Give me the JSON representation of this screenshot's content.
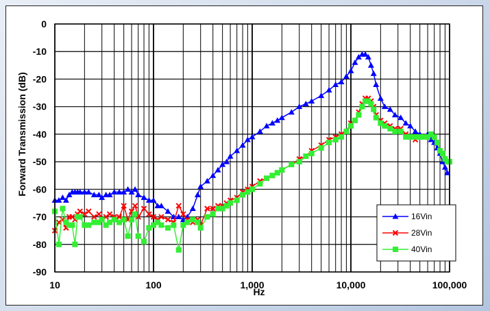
{
  "chart_data": {
    "type": "line",
    "xlabel": "Hz",
    "ylabel": "Forward Transmission (dB)",
    "x_scale": "log",
    "xlim": [
      10,
      100000
    ],
    "ylim": [
      -90,
      0
    ],
    "x_ticks": [
      10,
      100,
      1000,
      10000,
      100000
    ],
    "x_tick_labels": [
      "10",
      "100",
      "1,000",
      "10,000",
      "100,000"
    ],
    "y_ticks": [
      0,
      -10,
      -20,
      -30,
      -40,
      -50,
      -60,
      -70,
      -80,
      -90
    ],
    "y_tick_labels": [
      "0",
      "-10",
      "-20",
      "-30",
      "-40",
      "-50",
      "-60",
      "-70",
      "-80",
      "-90"
    ],
    "grid": true,
    "legend_position": "bottom-right",
    "series": [
      {
        "name": "16Vin",
        "color": "#0000ff",
        "marker": "triangle",
        "points": [
          [
            10,
            -64
          ],
          [
            11,
            -64
          ],
          [
            12,
            -63
          ],
          [
            13,
            -64
          ],
          [
            14,
            -62
          ],
          [
            15,
            -61
          ],
          [
            16,
            -61
          ],
          [
            17,
            -61
          ],
          [
            18,
            -61
          ],
          [
            20,
            -61
          ],
          [
            22,
            -61
          ],
          [
            25,
            -62
          ],
          [
            28,
            -62
          ],
          [
            30,
            -63
          ],
          [
            33,
            -62
          ],
          [
            36,
            -62
          ],
          [
            40,
            -61
          ],
          [
            45,
            -61
          ],
          [
            50,
            -61
          ],
          [
            55,
            -60
          ],
          [
            60,
            -61
          ],
          [
            65,
            -60
          ],
          [
            70,
            -62
          ],
          [
            80,
            -63
          ],
          [
            90,
            -64
          ],
          [
            100,
            -64
          ],
          [
            110,
            -66
          ],
          [
            120,
            -66
          ],
          [
            140,
            -68
          ],
          [
            160,
            -70
          ],
          [
            180,
            -70
          ],
          [
            200,
            -71
          ],
          [
            220,
            -70
          ],
          [
            250,
            -67
          ],
          [
            280,
            -62
          ],
          [
            300,
            -59
          ],
          [
            350,
            -57
          ],
          [
            400,
            -55
          ],
          [
            450,
            -53
          ],
          [
            500,
            -51
          ],
          [
            550,
            -50
          ],
          [
            600,
            -48
          ],
          [
            700,
            -46
          ],
          [
            800,
            -44
          ],
          [
            900,
            -42
          ],
          [
            1000,
            -41
          ],
          [
            1200,
            -39
          ],
          [
            1400,
            -37
          ],
          [
            1600,
            -36
          ],
          [
            1800,
            -35
          ],
          [
            2000,
            -34
          ],
          [
            2500,
            -32
          ],
          [
            3000,
            -30
          ],
          [
            3500,
            -29
          ],
          [
            4000,
            -28
          ],
          [
            5000,
            -26
          ],
          [
            6000,
            -24
          ],
          [
            7000,
            -22
          ],
          [
            8000,
            -21
          ],
          [
            9000,
            -19
          ],
          [
            10000,
            -17
          ],
          [
            11000,
            -14
          ],
          [
            12000,
            -12
          ],
          [
            13000,
            -11
          ],
          [
            14000,
            -11
          ],
          [
            15000,
            -12
          ],
          [
            16000,
            -15
          ],
          [
            17000,
            -18
          ],
          [
            18000,
            -22
          ],
          [
            20000,
            -27
          ],
          [
            22000,
            -30
          ],
          [
            25000,
            -31
          ],
          [
            28000,
            -33
          ],
          [
            32000,
            -34
          ],
          [
            36000,
            -36
          ],
          [
            40000,
            -37
          ],
          [
            45000,
            -39
          ],
          [
            50000,
            -40
          ],
          [
            55000,
            -41
          ],
          [
            60000,
            -40
          ],
          [
            65000,
            -42
          ],
          [
            70000,
            -43
          ],
          [
            75000,
            -45
          ],
          [
            80000,
            -47
          ],
          [
            85000,
            -50
          ],
          [
            90000,
            -52
          ],
          [
            95000,
            -54
          ]
        ]
      },
      {
        "name": "28Vin",
        "color": "#ff0000",
        "marker": "x",
        "points": [
          [
            10,
            -75
          ],
          [
            11,
            -72
          ],
          [
            12,
            -71
          ],
          [
            13,
            -74
          ],
          [
            14,
            -70
          ],
          [
            15,
            -70
          ],
          [
            16,
            -71
          ],
          [
            17,
            -69
          ],
          [
            18,
            -68
          ],
          [
            20,
            -69
          ],
          [
            22,
            -68
          ],
          [
            25,
            -70
          ],
          [
            28,
            -69
          ],
          [
            30,
            -71
          ],
          [
            33,
            -70
          ],
          [
            36,
            -69
          ],
          [
            40,
            -70
          ],
          [
            45,
            -70
          ],
          [
            50,
            -66
          ],
          [
            55,
            -71
          ],
          [
            60,
            -68
          ],
          [
            65,
            -66
          ],
          [
            70,
            -70
          ],
          [
            80,
            -67
          ],
          [
            90,
            -69
          ],
          [
            100,
            -70
          ],
          [
            110,
            -71
          ],
          [
            120,
            -70
          ],
          [
            140,
            -71
          ],
          [
            160,
            -72
          ],
          [
            180,
            -66
          ],
          [
            200,
            -69
          ],
          [
            220,
            -71
          ],
          [
            250,
            -72
          ],
          [
            280,
            -71
          ],
          [
            300,
            -73
          ],
          [
            350,
            -67
          ],
          [
            400,
            -67
          ],
          [
            450,
            -66
          ],
          [
            500,
            -66
          ],
          [
            550,
            -65
          ],
          [
            600,
            -64
          ],
          [
            700,
            -63
          ],
          [
            800,
            -61
          ],
          [
            900,
            -60
          ],
          [
            1000,
            -59
          ],
          [
            1200,
            -57
          ],
          [
            1400,
            -56
          ],
          [
            1600,
            -55
          ],
          [
            1800,
            -54
          ],
          [
            2000,
            -53
          ],
          [
            2500,
            -51
          ],
          [
            3000,
            -49
          ],
          [
            3500,
            -48
          ],
          [
            4000,
            -46
          ],
          [
            5000,
            -44
          ],
          [
            6000,
            -42
          ],
          [
            7000,
            -41
          ],
          [
            8000,
            -40
          ],
          [
            9000,
            -39
          ],
          [
            10000,
            -36
          ],
          [
            11000,
            -35
          ],
          [
            12000,
            -32
          ],
          [
            13000,
            -29
          ],
          [
            14000,
            -27
          ],
          [
            15000,
            -27
          ],
          [
            16000,
            -28
          ],
          [
            17000,
            -30
          ],
          [
            18000,
            -33
          ],
          [
            20000,
            -35
          ],
          [
            22000,
            -36
          ],
          [
            25000,
            -37
          ],
          [
            28000,
            -38
          ],
          [
            32000,
            -38
          ],
          [
            36000,
            -40
          ],
          [
            40000,
            -41
          ],
          [
            45000,
            -42
          ],
          [
            50000,
            -41
          ],
          [
            55000,
            -41
          ],
          [
            60000,
            -41
          ],
          [
            65000,
            -40
          ],
          [
            70000,
            -41
          ],
          [
            75000,
            -43
          ],
          [
            80000,
            -46
          ],
          [
            85000,
            -47
          ],
          [
            90000,
            -49
          ],
          [
            95000,
            -50
          ],
          [
            100000,
            -50
          ]
        ]
      },
      {
        "name": "40Vin",
        "color": "#33ee33",
        "marker": "square",
        "points": [
          [
            10,
            -68
          ],
          [
            11,
            -80
          ],
          [
            12,
            -67
          ],
          [
            13,
            -72
          ],
          [
            14,
            -73
          ],
          [
            15,
            -73
          ],
          [
            16,
            -80
          ],
          [
            17,
            -70
          ],
          [
            18,
            -70
          ],
          [
            20,
            -73
          ],
          [
            22,
            -73
          ],
          [
            25,
            -72
          ],
          [
            28,
            -72
          ],
          [
            30,
            -71
          ],
          [
            33,
            -73
          ],
          [
            36,
            -72
          ],
          [
            40,
            -71
          ],
          [
            45,
            -72
          ],
          [
            50,
            -71
          ],
          [
            55,
            -77
          ],
          [
            60,
            -71
          ],
          [
            65,
            -69
          ],
          [
            70,
            -77
          ],
          [
            80,
            -79
          ],
          [
            90,
            -74
          ],
          [
            100,
            -73
          ],
          [
            110,
            -72
          ],
          [
            120,
            -73
          ],
          [
            140,
            -74
          ],
          [
            160,
            -73
          ],
          [
            180,
            -82
          ],
          [
            200,
            -73
          ],
          [
            220,
            -72
          ],
          [
            250,
            -71
          ],
          [
            280,
            -72
          ],
          [
            300,
            -74
          ],
          [
            350,
            -70
          ],
          [
            400,
            -69
          ],
          [
            450,
            -67
          ],
          [
            500,
            -67
          ],
          [
            550,
            -66
          ],
          [
            600,
            -65
          ],
          [
            700,
            -64
          ],
          [
            800,
            -62
          ],
          [
            900,
            -61
          ],
          [
            1000,
            -60
          ],
          [
            1200,
            -58
          ],
          [
            1400,
            -56
          ],
          [
            1600,
            -55
          ],
          [
            1800,
            -54
          ],
          [
            2000,
            -53
          ],
          [
            2500,
            -51
          ],
          [
            3000,
            -50
          ],
          [
            3500,
            -48
          ],
          [
            4000,
            -47
          ],
          [
            5000,
            -45
          ],
          [
            6000,
            -43
          ],
          [
            7000,
            -42
          ],
          [
            8000,
            -41
          ],
          [
            9000,
            -39
          ],
          [
            10000,
            -37
          ],
          [
            11000,
            -35
          ],
          [
            12000,
            -33
          ],
          [
            13000,
            -30
          ],
          [
            14000,
            -28
          ],
          [
            15000,
            -28
          ],
          [
            16000,
            -29
          ],
          [
            17000,
            -31
          ],
          [
            18000,
            -34
          ],
          [
            20000,
            -36
          ],
          [
            22000,
            -37
          ],
          [
            25000,
            -38
          ],
          [
            28000,
            -39
          ],
          [
            32000,
            -39
          ],
          [
            36000,
            -41
          ],
          [
            40000,
            -41
          ],
          [
            45000,
            -41
          ],
          [
            50000,
            -41
          ],
          [
            55000,
            -41
          ],
          [
            60000,
            -41
          ],
          [
            65000,
            -40
          ],
          [
            70000,
            -41
          ],
          [
            75000,
            -43
          ],
          [
            80000,
            -46
          ],
          [
            85000,
            -47
          ],
          [
            90000,
            -49
          ],
          [
            95000,
            -50
          ],
          [
            100000,
            -50
          ]
        ]
      }
    ]
  }
}
